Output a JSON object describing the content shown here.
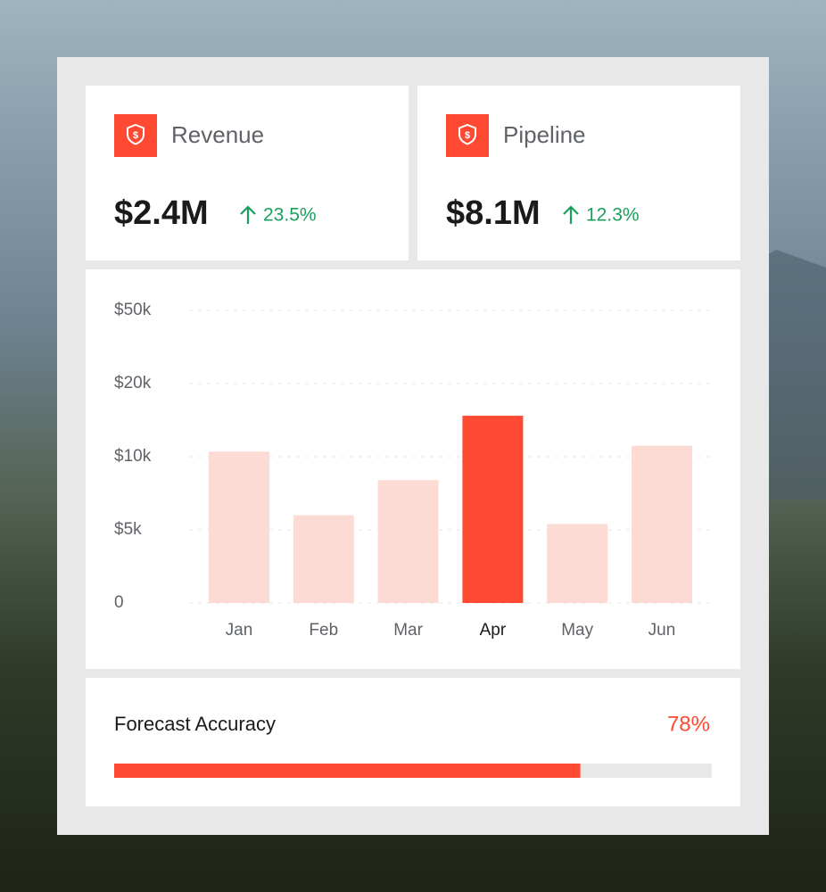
{
  "kpis": [
    {
      "title": "Revenue",
      "value": "$2.4M",
      "change": "23.5%"
    },
    {
      "title": "Pipeline",
      "value": "$8.1M",
      "change": "12.3%"
    }
  ],
  "chart_data": {
    "type": "bar",
    "categories": [
      "Jan",
      "Feb",
      "Mar",
      "Apr",
      "May",
      "Jun"
    ],
    "values": [
      10700,
      6000,
      8400,
      15600,
      5400,
      11500
    ],
    "bar_colors": [
      "#fddbd5",
      "#fddbd5",
      "#fddbd5",
      "#ff4a33",
      "#fddbd5",
      "#fddbd5"
    ],
    "label_colors": [
      "#5f6368",
      "#5f6368",
      "#5f6368",
      "#1a1a1a",
      "#5f6368",
      "#5f6368"
    ],
    "ylim": [
      0,
      50000
    ],
    "yticks": [
      0,
      {
        "value": 5000,
        "label": "$5k"
      },
      {
        "value": 10000,
        "label": "$10k"
      },
      {
        "value": 20000,
        "label": "$20k"
      },
      {
        "value": 50000,
        "label": "$50k"
      }
    ],
    "grid": true
  },
  "forecast": {
    "label": "Forecast Accuracy",
    "value": 78,
    "value_label": "78%",
    "xlim": [
      0,
      100
    ],
    "color": "#ff4a33"
  }
}
